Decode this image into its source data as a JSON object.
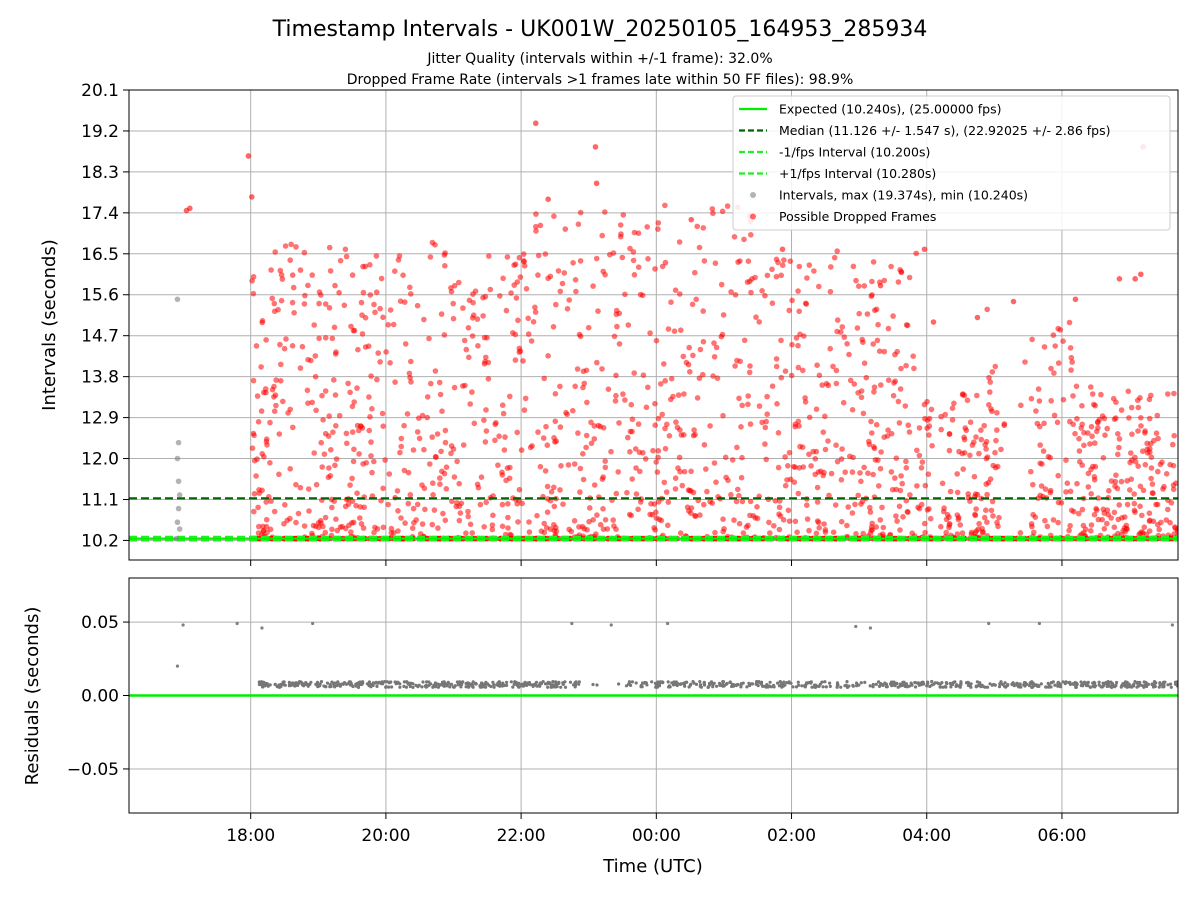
{
  "chart_data": [
    {
      "type": "scatter",
      "title": "Timestamp Intervals - UK001W_20250105_164953_285934",
      "subtitle_lines": [
        "Jitter Quality (intervals within +/-1 frame): 32.0%",
        "Dropped Frame Rate (intervals >1 frames late within 50 FF files): 98.9%"
      ],
      "xlabel": "",
      "ylabel": "Intervals (seconds)",
      "x_axis": {
        "type": "time",
        "range": [
          "2025-01-05T16:12",
          "2025-01-06T07:43"
        ],
        "ticks": [
          "2025-01-05T18:00",
          "2025-01-05T20:00",
          "2025-01-05T22:00",
          "2025-01-06T00:00",
          "2025-01-06T02:00",
          "2025-01-06T04:00",
          "2025-01-06T06:00"
        ],
        "tick_labels": [
          "18:00",
          "20:00",
          "22:00",
          "00:00",
          "02:00",
          "04:00",
          "06:00"
        ]
      },
      "ylim": [
        9.77,
        20.1
      ],
      "yticks": [
        10.2,
        11.1,
        12.0,
        12.9,
        13.8,
        14.7,
        15.6,
        16.5,
        17.4,
        18.3,
        19.2,
        20.1
      ],
      "ytick_labels": [
        "10.2",
        "11.1",
        "12.0",
        "12.9",
        "13.8",
        "14.7",
        "15.6",
        "16.5",
        "17.4",
        "18.3",
        "19.2",
        "20.1"
      ],
      "grid": true,
      "legend_position": "top-right",
      "reference_lines": [
        {
          "label": "Expected (10.240s), (25.00000 fps)",
          "y": 10.24,
          "style": "solid",
          "color": "#00ee00"
        },
        {
          "label": "Median (11.126 +/- 1.547 s), (22.92025 +/- 2.86 fps)",
          "y": 11.126,
          "style": "dashed",
          "color": "#006400"
        },
        {
          "label": "-1/fps Interval (10.200s)",
          "y": 10.2,
          "style": "dashed",
          "color": "#22ee22"
        },
        {
          "label": "+1/fps Interval (10.280s)",
          "y": 10.28,
          "style": "dashed",
          "color": "#22ee22"
        }
      ],
      "series": [
        {
          "name": "Intervals, max (19.374s), min (10.240s)",
          "color": "#808080",
          "points": [
            {
              "x": "2025-01-05T16:55",
              "y": 15.5
            },
            {
              "x": "2025-01-05T16:56",
              "y": 12.35
            },
            {
              "x": "2025-01-05T16:55",
              "y": 12.0
            },
            {
              "x": "2025-01-05T16:56",
              "y": 11.5
            },
            {
              "x": "2025-01-05T16:57",
              "y": 11.2
            },
            {
              "x": "2025-01-05T16:56",
              "y": 10.9
            },
            {
              "x": "2025-01-05T16:55",
              "y": 10.6
            },
            {
              "x": "2025-01-05T16:57",
              "y": 10.45
            },
            {
              "x": "2025-01-05T16:54",
              "y": 10.24
            }
          ]
        },
        {
          "name": "Possible Dropped Frames",
          "color": "#ff0000",
          "description": "approx 3000 intervals between 10.24 s and 19.4 s from 17:00 to 07:43; sampled representative points",
          "points": [
            {
              "x": "2025-01-05T17:03",
              "y": 17.45
            },
            {
              "x": "2025-01-05T17:06",
              "y": 17.5
            },
            {
              "x": "2025-01-05T17:58",
              "y": 18.65
            },
            {
              "x": "2025-01-05T18:01",
              "y": 17.75
            },
            {
              "x": "2025-01-05T22:13",
              "y": 19.37
            },
            {
              "x": "2025-01-05T23:06",
              "y": 18.85
            },
            {
              "x": "2025-01-05T23:07",
              "y": 18.05
            },
            {
              "x": "2025-01-06T07:12",
              "y": 18.85
            },
            {
              "x": "2025-01-05T22:24",
              "y": 17.7
            },
            {
              "x": "2025-01-06T00:31",
              "y": 17.25
            },
            {
              "x": "2025-01-06T01:52",
              "y": 16.6
            },
            {
              "x": "2025-01-06T03:58",
              "y": 16.6
            },
            {
              "x": "2025-01-06T03:19",
              "y": 15.8
            },
            {
              "x": "2025-01-06T04:06",
              "y": 15.0
            },
            {
              "x": "2025-01-06T04:45",
              "y": 15.1
            },
            {
              "x": "2025-01-06T05:17",
              "y": 15.45
            },
            {
              "x": "2025-01-06T06:12",
              "y": 15.5
            },
            {
              "x": "2025-01-06T06:51",
              "y": 15.95
            },
            {
              "x": "2025-01-06T07:10",
              "y": 16.05
            },
            {
              "x": "2025-01-06T07:05",
              "y": 15.95
            }
          ]
        }
      ]
    },
    {
      "type": "scatter",
      "ylabel": "Residuals (seconds)",
      "xlabel": "Time (UTC)",
      "ylim": [
        -0.08,
        0.08
      ],
      "yticks": [
        -0.05,
        0.0,
        0.05
      ],
      "ytick_labels": [
        "−0.05",
        "0.00",
        "0.05"
      ],
      "grid": true,
      "reference_lines": [
        {
          "y": 0.0,
          "style": "solid",
          "color": "#00ee00"
        }
      ],
      "series": [
        {
          "name": "",
          "color": "#808080",
          "description": "residuals cluster near +0.008 s, occasional points near +0.048 s",
          "points": [
            {
              "x": "2025-01-05T16:55",
              "y": 0.02
            },
            {
              "x": "2025-01-05T17:00",
              "y": 0.048
            },
            {
              "x": "2025-01-05T17:48",
              "y": 0.049
            },
            {
              "x": "2025-01-05T18:10",
              "y": 0.046
            },
            {
              "x": "2025-01-05T18:55",
              "y": 0.049
            },
            {
              "x": "2025-01-05T22:45",
              "y": 0.049
            },
            {
              "x": "2025-01-05T23:20",
              "y": 0.048
            },
            {
              "x": "2025-01-06T00:10",
              "y": 0.049
            },
            {
              "x": "2025-01-06T02:57",
              "y": 0.047
            },
            {
              "x": "2025-01-06T03:10",
              "y": 0.046
            },
            {
              "x": "2025-01-06T04:55",
              "y": 0.049
            },
            {
              "x": "2025-01-06T05:40",
              "y": 0.049
            },
            {
              "x": "2025-01-06T07:38",
              "y": 0.048
            }
          ]
        }
      ]
    }
  ]
}
